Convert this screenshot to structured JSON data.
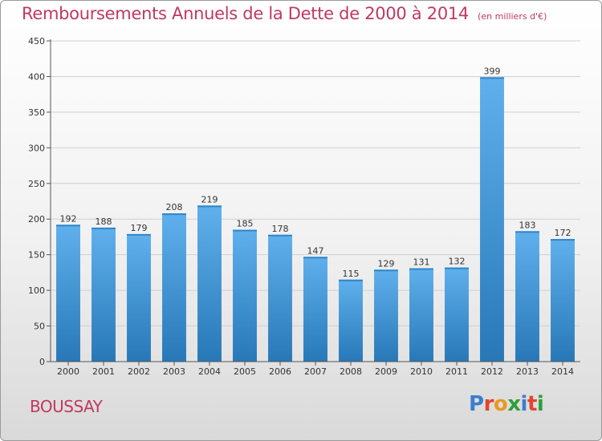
{
  "header": {
    "title": "Remboursements Annuels de la Dette de 2000 à 2014",
    "unit": "(en milliers d'€)"
  },
  "footer": {
    "commune": "BOUSSAY",
    "logo_text": "Proxiti",
    "logo_colors": [
      "#3a7fd0",
      "#e0452e",
      "#e89a1e",
      "#2f9e3a",
      "#3a7fd0",
      "#e0452e",
      "#2f9e3a"
    ]
  },
  "colors": {
    "bar_light": "#5fb0ec",
    "bar_dark": "#2878b8",
    "accent": "#c0395f"
  },
  "chart_data": {
    "type": "bar",
    "title": "Remboursements Annuels de la Dette de 2000 à 2014",
    "subtitle": "(en milliers d'€)",
    "categories": [
      "2000",
      "2001",
      "2002",
      "2003",
      "2004",
      "2005",
      "2006",
      "2007",
      "2008",
      "2009",
      "2010",
      "2011",
      "2012",
      "2013",
      "2014"
    ],
    "values": [
      192,
      188,
      179,
      208,
      219,
      185,
      178,
      147,
      115,
      129,
      131,
      132,
      399,
      183,
      172
    ],
    "ylim": [
      0,
      450
    ],
    "yticks": [
      0,
      50,
      100,
      150,
      200,
      250,
      300,
      350,
      400,
      450
    ],
    "grid": true,
    "legend": "none"
  }
}
